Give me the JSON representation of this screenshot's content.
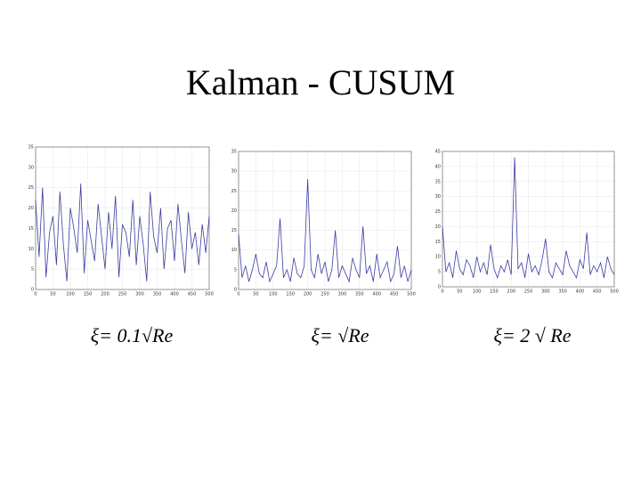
{
  "slide": {
    "title": "Kalman - CUSUM",
    "captions": [
      "ξ= 0.1√Re",
      "ξ= √Re",
      "ξ= 2 √ Re"
    ]
  },
  "chart_data": [
    {
      "type": "line",
      "grid": true,
      "xlim": [
        0,
        500
      ],
      "ylim": [
        0,
        35
      ],
      "xticks": [
        0,
        50,
        100,
        150,
        200,
        250,
        300,
        350,
        400,
        450,
        500
      ],
      "yticks": [
        0,
        5,
        10,
        15,
        20,
        25,
        30,
        35
      ],
      "x": [
        0,
        10,
        20,
        30,
        40,
        50,
        60,
        70,
        80,
        90,
        100,
        110,
        120,
        130,
        140,
        150,
        160,
        170,
        180,
        190,
        200,
        210,
        220,
        230,
        240,
        250,
        260,
        270,
        280,
        290,
        300,
        310,
        320,
        330,
        340,
        350,
        360,
        370,
        380,
        390,
        400,
        410,
        420,
        430,
        440,
        450,
        460,
        470,
        480,
        490,
        500
      ],
      "series": [
        {
          "color": "#3c3ca0",
          "values": [
            22,
            8,
            25,
            3,
            14,
            18,
            6,
            24,
            11,
            2,
            20,
            15,
            9,
            26,
            4,
            17,
            12,
            7,
            21,
            13,
            5,
            19,
            10,
            23,
            3,
            16,
            14,
            8,
            22,
            6,
            18,
            11,
            2,
            24,
            13,
            9,
            20,
            5,
            15,
            17,
            7,
            21,
            12,
            4,
            19,
            10,
            14,
            6,
            16,
            9,
            18
          ]
        }
      ]
    },
    {
      "type": "line",
      "grid": true,
      "xlim": [
        0,
        500
      ],
      "ylim": [
        0,
        35
      ],
      "xticks": [
        0,
        50,
        100,
        150,
        200,
        250,
        300,
        350,
        400,
        450,
        500
      ],
      "yticks": [
        0,
        5,
        10,
        15,
        20,
        25,
        30,
        35
      ],
      "x": [
        0,
        10,
        20,
        30,
        40,
        50,
        60,
        70,
        80,
        90,
        100,
        110,
        120,
        130,
        140,
        150,
        160,
        170,
        180,
        190,
        200,
        210,
        220,
        230,
        240,
        250,
        260,
        270,
        280,
        290,
        300,
        310,
        320,
        330,
        340,
        350,
        360,
        370,
        380,
        390,
        400,
        410,
        420,
        430,
        440,
        450,
        460,
        470,
        480,
        490,
        500
      ],
      "series": [
        {
          "color": "#3c3ca0",
          "values": [
            14,
            3,
            6,
            2,
            5,
            9,
            4,
            3,
            7,
            2,
            4,
            6,
            18,
            3,
            5,
            2,
            8,
            4,
            3,
            6,
            28,
            5,
            3,
            9,
            4,
            7,
            2,
            5,
            15,
            3,
            6,
            4,
            2,
            8,
            5,
            3,
            16,
            4,
            6,
            2,
            9,
            3,
            5,
            7,
            2,
            4,
            11,
            3,
            6,
            2,
            5
          ]
        }
      ]
    },
    {
      "type": "line",
      "grid": true,
      "xlim": [
        0,
        500
      ],
      "ylim": [
        0,
        45
      ],
      "xticks": [
        0,
        50,
        100,
        150,
        200,
        250,
        300,
        350,
        400,
        450,
        500
      ],
      "yticks": [
        0,
        5,
        10,
        15,
        20,
        25,
        30,
        35,
        40,
        45
      ],
      "x": [
        0,
        10,
        20,
        30,
        40,
        50,
        60,
        70,
        80,
        90,
        100,
        110,
        120,
        130,
        140,
        150,
        160,
        170,
        180,
        190,
        200,
        210,
        220,
        230,
        240,
        250,
        260,
        270,
        280,
        290,
        300,
        310,
        320,
        330,
        340,
        350,
        360,
        370,
        380,
        390,
        400,
        410,
        420,
        430,
        440,
        450,
        460,
        470,
        480,
        490,
        500
      ],
      "series": [
        {
          "color": "#3c3ca0",
          "values": [
            20,
            5,
            8,
            3,
            12,
            6,
            4,
            9,
            7,
            3,
            10,
            5,
            8,
            4,
            14,
            6,
            3,
            7,
            5,
            9,
            4,
            43,
            6,
            8,
            3,
            11,
            5,
            7,
            4,
            9,
            16,
            5,
            3,
            8,
            6,
            4,
            12,
            7,
            5,
            3,
            9,
            6,
            18,
            4,
            7,
            5,
            8,
            3,
            10,
            6,
            4
          ]
        }
      ]
    }
  ]
}
